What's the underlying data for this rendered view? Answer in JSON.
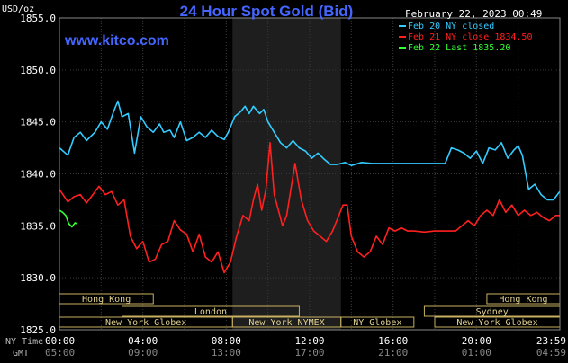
{
  "chart_data": {
    "type": "line",
    "title": "24 Hour Spot Gold (Bid)",
    "watermark": "www.kitco.com",
    "date_time": "February 22, 2023 00:49",
    "y_unit_label": "USD/oz",
    "ylim": [
      1825,
      1855
    ],
    "yticks": [
      "1855.0",
      "1850.0",
      "1845.0",
      "1840.0",
      "1835.0",
      "1830.0",
      "1825.0"
    ],
    "x_hours": [
      0,
      24
    ],
    "ny_time_label": "NY Time",
    "gmt_label": "GMT",
    "xticks_ny": [
      "00:00",
      "04:00",
      "08:00",
      "12:00",
      "16:00",
      "20:00",
      "23:59"
    ],
    "xticks_gmt": [
      "05:00",
      "09:00",
      "13:00",
      "17:00",
      "21:00",
      "01:00",
      "04:59"
    ],
    "shaded_session_hours": [
      8.3,
      13.5
    ],
    "legend": [
      {
        "label": "Feb 20 NY closed",
        "color": "#33ccff"
      },
      {
        "label": "Feb 21 NY close 1834.50",
        "color": "#ff2020"
      },
      {
        "label": "Feb 22 Last 1835.20",
        "color": "#33ff33"
      }
    ],
    "market_sessions": [
      {
        "label": "Hong Kong",
        "start": 0,
        "end": 4.5,
        "row": 0
      },
      {
        "label": "Hong Kong",
        "start": 20.5,
        "end": 24,
        "row": 0
      },
      {
        "label": "London",
        "start": 3,
        "end": 11.5,
        "row": 1
      },
      {
        "label": "Sydney",
        "start": 17.5,
        "end": 24,
        "row": 1
      },
      {
        "label": "New York Globex",
        "start": 0,
        "end": 8.3,
        "row": 2
      },
      {
        "label": "New York NYMEX",
        "start": 8.3,
        "end": 13.5,
        "row": 2
      },
      {
        "label": "NY Globex",
        "start": 13.5,
        "end": 17,
        "row": 2
      },
      {
        "label": "New York Globex",
        "start": 18,
        "end": 24,
        "row": 2
      }
    ],
    "series": [
      {
        "name": "Feb 20 NY closed",
        "color": "#33ccff",
        "x": [
          0,
          0.4,
          0.7,
          1.0,
          1.3,
          1.7,
          2.0,
          2.3,
          2.6,
          2.8,
          3.0,
          3.3,
          3.6,
          3.9,
          4.2,
          4.5,
          4.8,
          5.0,
          5.3,
          5.5,
          5.8,
          6.1,
          6.4,
          6.7,
          7.0,
          7.3,
          7.6,
          7.9,
          8.1,
          8.4,
          8.7,
          8.9,
          9.1,
          9.3,
          9.6,
          9.8,
          10.0,
          10.3,
          10.6,
          10.9,
          11.2,
          11.5,
          11.8,
          12.1,
          12.4,
          12.7,
          13.0,
          13.3,
          13.7,
          14.0,
          14.5,
          15.0,
          16.0,
          17.0,
          18.0,
          18.5,
          18.8,
          19.1,
          19.4,
          19.7,
          20.0,
          20.3,
          20.6,
          20.9,
          21.2,
          21.5,
          21.8,
          22.0,
          22.2,
          22.5,
          22.8,
          23.1,
          23.4,
          23.7,
          23.99
        ],
        "y": [
          1842.5,
          1841.8,
          1843.5,
          1844.0,
          1843.2,
          1844.0,
          1845.0,
          1844.3,
          1846.0,
          1847.0,
          1845.5,
          1845.8,
          1842.0,
          1845.5,
          1844.5,
          1844.0,
          1844.8,
          1844.0,
          1844.2,
          1843.5,
          1845.0,
          1843.2,
          1843.5,
          1844.0,
          1843.5,
          1844.2,
          1843.6,
          1843.3,
          1844.0,
          1845.5,
          1846.0,
          1846.5,
          1845.8,
          1846.5,
          1845.8,
          1846.2,
          1845.0,
          1844.0,
          1843.0,
          1842.5,
          1843.2,
          1842.5,
          1842.2,
          1841.5,
          1842.0,
          1841.4,
          1840.9,
          1840.9,
          1841.1,
          1840.8,
          1841.1,
          1841.0,
          1841.0,
          1841.0,
          1841.0,
          1841.0,
          1842.5,
          1842.3,
          1842.0,
          1841.5,
          1842.2,
          1841.0,
          1842.5,
          1842.3,
          1843.0,
          1841.5,
          1842.3,
          1842.7,
          1841.8,
          1838.5,
          1839.0,
          1838.0,
          1837.5,
          1837.5,
          1838.3
        ]
      },
      {
        "name": "Feb 21 NY close 1834.50",
        "color": "#ff2020",
        "x": [
          0,
          0.4,
          0.7,
          1.0,
          1.3,
          1.6,
          1.9,
          2.2,
          2.5,
          2.8,
          3.1,
          3.4,
          3.7,
          4.0,
          4.3,
          4.6,
          4.9,
          5.2,
          5.5,
          5.8,
          6.1,
          6.4,
          6.7,
          7.0,
          7.3,
          7.6,
          7.9,
          8.2,
          8.5,
          8.8,
          9.1,
          9.3,
          9.5,
          9.7,
          9.9,
          10.1,
          10.3,
          10.5,
          10.7,
          10.9,
          11.1,
          11.3,
          11.6,
          11.9,
          12.2,
          12.5,
          12.8,
          13.1,
          13.4,
          13.6,
          13.8,
          14.0,
          14.3,
          14.6,
          14.9,
          15.2,
          15.5,
          15.8,
          16.1,
          16.4,
          16.7,
          17.0,
          17.5,
          18.0,
          18.5,
          19.0,
          19.3,
          19.6,
          19.9,
          20.2,
          20.5,
          20.8,
          21.1,
          21.4,
          21.7,
          22.0,
          22.3,
          22.6,
          22.9,
          23.2,
          23.5,
          23.8,
          23.99
        ],
        "y": [
          1838.5,
          1837.3,
          1837.8,
          1838.0,
          1837.2,
          1838.0,
          1838.8,
          1838.0,
          1838.3,
          1837.0,
          1837.5,
          1834.0,
          1832.8,
          1833.5,
          1831.5,
          1831.8,
          1833.2,
          1833.5,
          1835.5,
          1834.6,
          1834.2,
          1832.5,
          1834.2,
          1832.0,
          1831.5,
          1832.5,
          1830.5,
          1831.5,
          1834.0,
          1836.0,
          1835.5,
          1837.5,
          1839.0,
          1836.5,
          1838.5,
          1843.0,
          1838.0,
          1836.5,
          1835.0,
          1836.0,
          1838.5,
          1841.0,
          1837.5,
          1835.5,
          1834.5,
          1834.0,
          1833.5,
          1834.5,
          1836.0,
          1837.0,
          1837.0,
          1834.0,
          1832.5,
          1832.0,
          1832.5,
          1834.0,
          1833.2,
          1834.8,
          1834.5,
          1834.8,
          1834.5,
          1834.5,
          1834.4,
          1834.5,
          1834.5,
          1834.5,
          1835.0,
          1835.5,
          1835.0,
          1836.0,
          1836.5,
          1836.0,
          1837.5,
          1836.3,
          1837.0,
          1836.0,
          1836.5,
          1836.0,
          1836.3,
          1835.8,
          1835.5,
          1836.0,
          1836.0
        ]
      },
      {
        "name": "Feb 22 Last 1835.20",
        "color": "#33ff33",
        "x": [
          0,
          0.15,
          0.3,
          0.45,
          0.6,
          0.75,
          0.83
        ],
        "y": [
          1836.5,
          1836.3,
          1836.0,
          1835.2,
          1834.9,
          1835.3,
          1835.2
        ]
      }
    ]
  }
}
